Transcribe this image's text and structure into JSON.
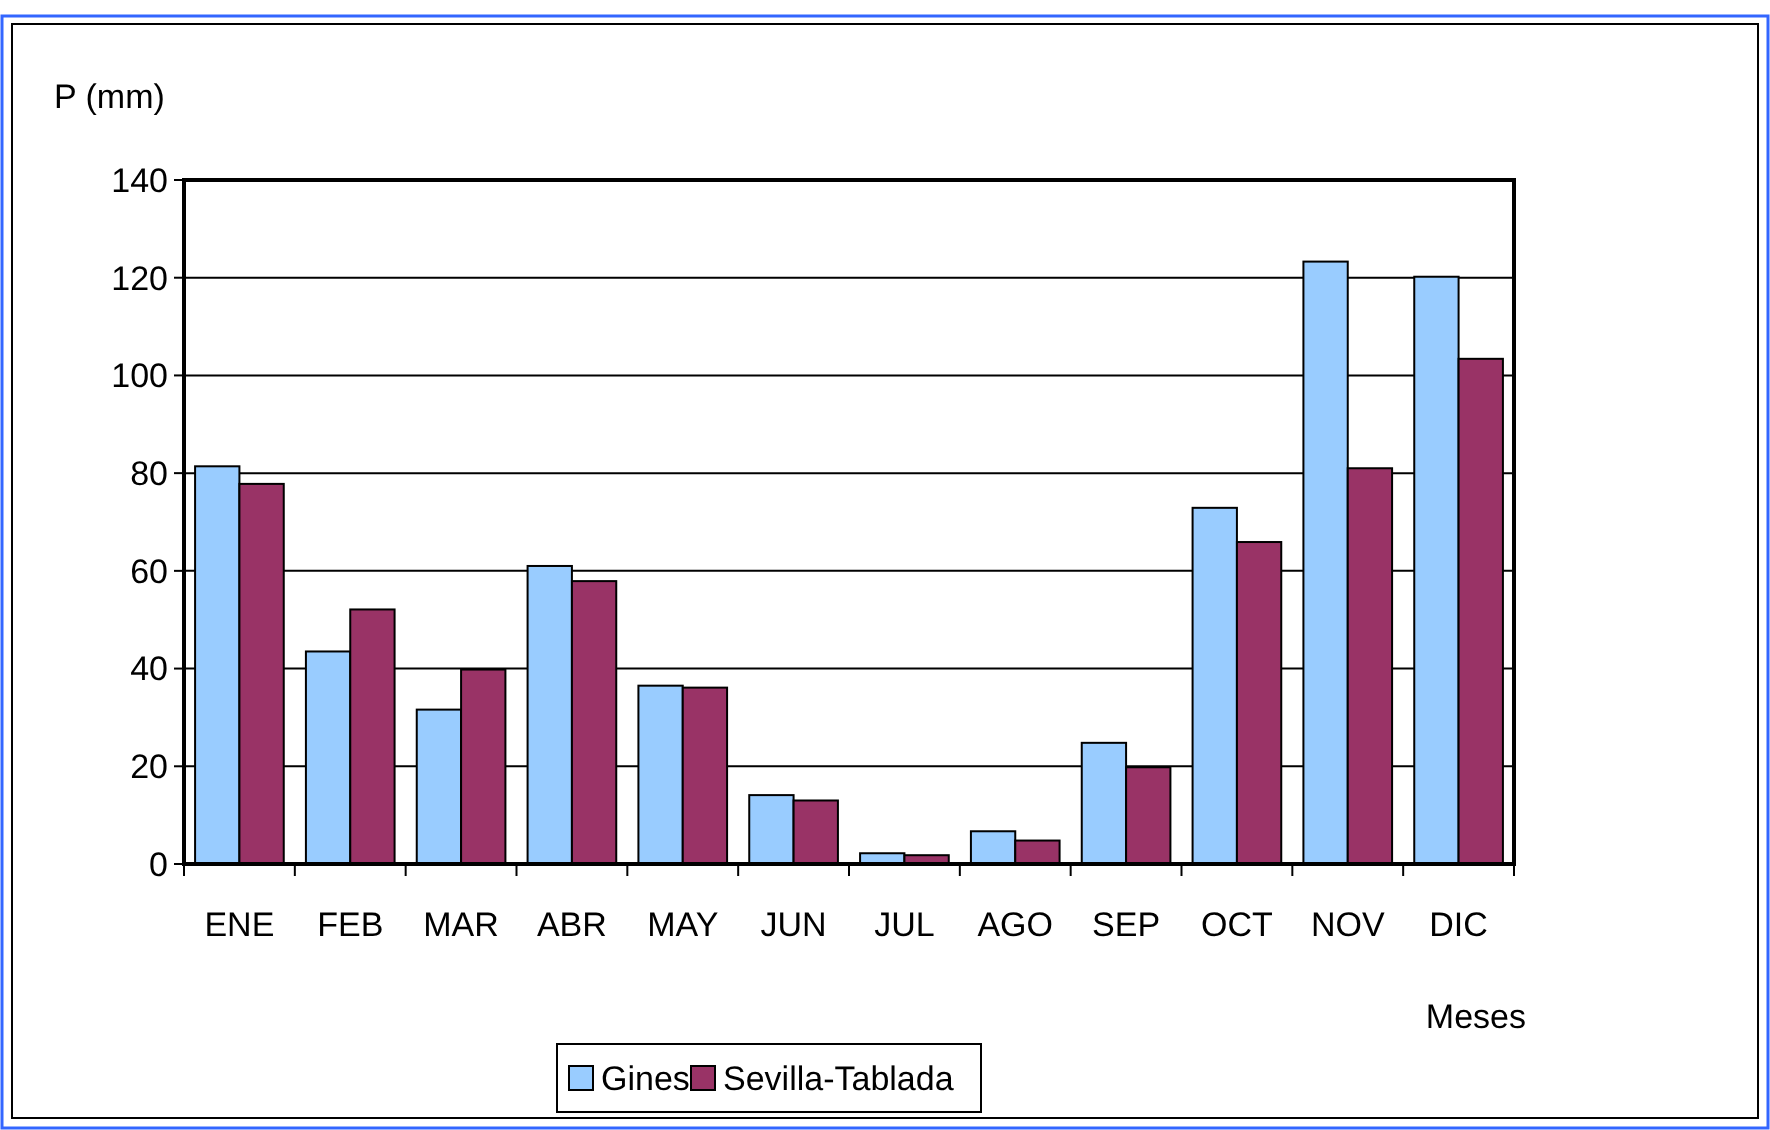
{
  "chart_data": {
    "type": "bar",
    "ylabel": "P (mm)",
    "xlabel": "Meses",
    "categories": [
      "ENE",
      "FEB",
      "MAR",
      "ABR",
      "MAY",
      "JUN",
      "JUL",
      "AGO",
      "SEP",
      "OCT",
      "NOV",
      "DIC"
    ],
    "series": [
      {
        "name": "Gines",
        "color": "#99ccff",
        "values": [
          81.4,
          43.5,
          31.6,
          61,
          36.5,
          14.1,
          2.2,
          6.7,
          24.8,
          72.9,
          123.3,
          120.2
        ]
      },
      {
        "name": "Sevilla-Tablada",
        "color": "#993366",
        "values": [
          77.8,
          52.1,
          39.8,
          57.9,
          36.1,
          13,
          1.8,
          4.8,
          19.8,
          65.9,
          81,
          103.4
        ]
      }
    ],
    "ylim": [
      0,
      140
    ],
    "yticks": [
      0,
      20,
      40,
      60,
      80,
      100,
      120,
      140
    ],
    "grid": "y",
    "legend": "bottom"
  }
}
